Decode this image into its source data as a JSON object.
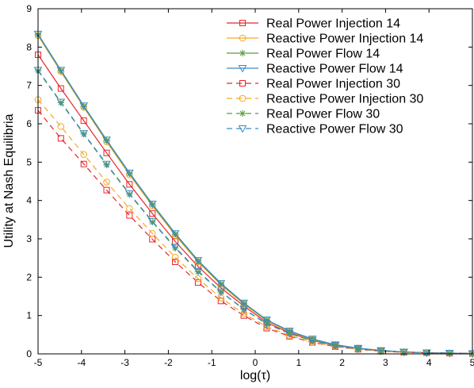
{
  "chart_data": {
    "type": "line",
    "title": "",
    "xlabel": "log(τ)",
    "ylabel": "Utility at Nash Equilibria",
    "xlim": [
      -5,
      5
    ],
    "ylim": [
      0,
      9
    ],
    "xticks": [
      "-5",
      "-4",
      "-3",
      "-2",
      "-1",
      "0",
      "1",
      "2",
      "3",
      "4",
      "5"
    ],
    "yticks": [
      "0",
      "1",
      "2",
      "3",
      "4",
      "5",
      "6",
      "7",
      "8",
      "9"
    ],
    "grid": false,
    "legend_position": "top-right",
    "x": [
      -5,
      -4.474,
      -3.947,
      -3.421,
      -2.895,
      -2.368,
      -1.842,
      -1.316,
      -0.789,
      -0.263,
      0.263,
      0.789,
      1.316,
      1.842,
      2.368,
      2.895,
      3.421,
      3.947,
      4.474,
      5
    ],
    "series": [
      {
        "name": "Real Power Injection 14",
        "color": "#e8262a",
        "marker": "square",
        "dash": "solid",
        "values": [
          7.8,
          6.92,
          6.08,
          5.24,
          4.42,
          3.66,
          2.93,
          2.28,
          1.72,
          1.25,
          0.82,
          0.55,
          0.35,
          0.22,
          0.14,
          0.08,
          0.05,
          0.03,
          0.02,
          0.01
        ]
      },
      {
        "name": "Reactive Power Injection 14",
        "color": "#f5a623",
        "marker": "circle",
        "dash": "solid",
        "values": [
          8.3,
          7.36,
          6.43,
          5.53,
          4.67,
          3.86,
          3.09,
          2.4,
          1.8,
          1.3,
          0.86,
          0.58,
          0.37,
          0.23,
          0.14,
          0.08,
          0.05,
          0.03,
          0.02,
          0.01
        ]
      },
      {
        "name": "Real Power Flow 14",
        "color": "#5a9e3a",
        "marker": "asterisk",
        "dash": "solid",
        "values": [
          8.32,
          7.38,
          6.45,
          5.56,
          4.7,
          3.89,
          3.12,
          2.42,
          1.82,
          1.32,
          0.88,
          0.59,
          0.38,
          0.24,
          0.15,
          0.09,
          0.05,
          0.03,
          0.02,
          0.01
        ]
      },
      {
        "name": "Reactive Power Flow 14",
        "color": "#3a8bc8",
        "marker": "triangle-down",
        "dash": "solid",
        "values": [
          8.34,
          7.4,
          6.47,
          5.58,
          4.72,
          3.91,
          3.14,
          2.44,
          1.84,
          1.33,
          0.89,
          0.6,
          0.39,
          0.24,
          0.15,
          0.09,
          0.05,
          0.03,
          0.02,
          0.01
        ]
      },
      {
        "name": "Real Power Injection 30",
        "color": "#e8262a",
        "marker": "square",
        "dash": "dashed",
        "values": [
          6.35,
          5.62,
          4.95,
          4.27,
          3.61,
          2.99,
          2.4,
          1.86,
          1.38,
          1.0,
          0.67,
          0.46,
          0.3,
          0.19,
          0.12,
          0.07,
          0.04,
          0.03,
          0.02,
          0.01
        ]
      },
      {
        "name": "Reactive Power Injection 30",
        "color": "#f5a623",
        "marker": "circle",
        "dash": "dashed",
        "values": [
          6.63,
          5.93,
          5.2,
          4.48,
          3.79,
          3.14,
          2.52,
          1.96,
          1.46,
          1.05,
          0.71,
          0.48,
          0.31,
          0.2,
          0.12,
          0.07,
          0.04,
          0.03,
          0.02,
          0.01
        ]
      },
      {
        "name": "Real Power Flow 30",
        "color": "#5a9e3a",
        "marker": "asterisk",
        "dash": "dashed",
        "values": [
          7.38,
          6.55,
          5.73,
          4.93,
          4.16,
          3.44,
          2.76,
          2.14,
          1.61,
          1.16,
          0.78,
          0.53,
          0.34,
          0.21,
          0.13,
          0.08,
          0.05,
          0.03,
          0.02,
          0.01
        ]
      },
      {
        "name": "Reactive Power Flow 30",
        "color": "#3a8bc8",
        "marker": "triangle-down",
        "dash": "dashed",
        "values": [
          7.4,
          6.57,
          5.75,
          4.95,
          4.18,
          3.46,
          2.78,
          2.16,
          1.62,
          1.17,
          0.79,
          0.53,
          0.35,
          0.22,
          0.13,
          0.08,
          0.05,
          0.03,
          0.02,
          0.01
        ]
      }
    ]
  }
}
